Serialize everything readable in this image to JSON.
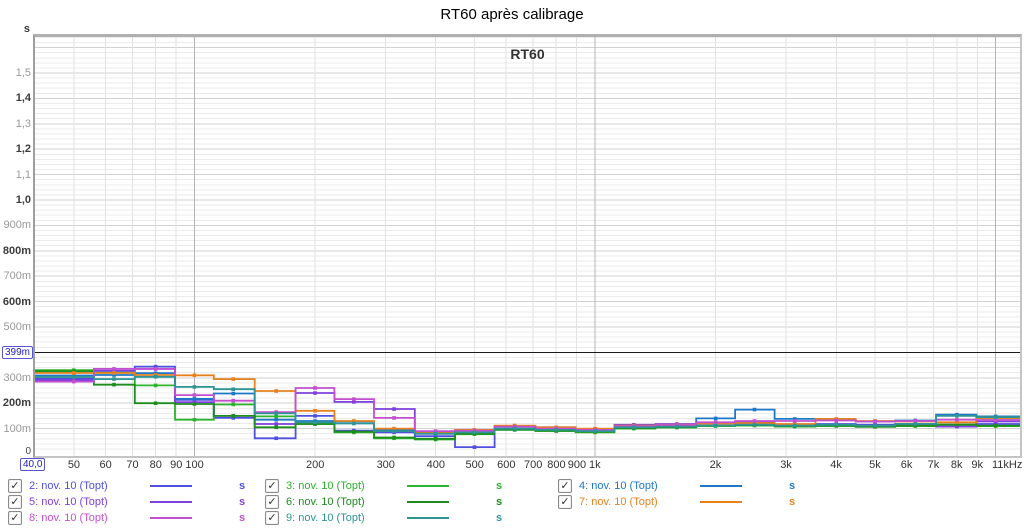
{
  "title": "RT60 après calibrage",
  "chart": {
    "inner_title": "RT60",
    "y_unit_label": "s",
    "y_origin_label": "0",
    "cursor": {
      "y_readout": "399m",
      "x_readout": "40,0",
      "y_value_s": 0.399,
      "x_value_hz": 40.0
    }
  },
  "chart_data": {
    "type": "line",
    "style": "stepped-third-octave-bands-with-markers",
    "title": "RT60",
    "x_axis": {
      "scale": "log",
      "min_hz": 40,
      "max_hz": 11500,
      "ticks": [
        {
          "label": "50",
          "hz": 50
        },
        {
          "label": "60",
          "hz": 60
        },
        {
          "label": "70",
          "hz": 70
        },
        {
          "label": "80",
          "hz": 80
        },
        {
          "label": "90",
          "hz": 90
        },
        {
          "label": "100",
          "hz": 100
        },
        {
          "label": "200",
          "hz": 200
        },
        {
          "label": "300",
          "hz": 300
        },
        {
          "label": "400",
          "hz": 400
        },
        {
          "label": "500",
          "hz": 500
        },
        {
          "label": "600",
          "hz": 600
        },
        {
          "label": "700",
          "hz": 700
        },
        {
          "label": "800",
          "hz": 800
        },
        {
          "label": "900",
          "hz": 900
        },
        {
          "label": "1k",
          "hz": 1000
        },
        {
          "label": "2k",
          "hz": 2000
        },
        {
          "label": "3k",
          "hz": 3000
        },
        {
          "label": "4k",
          "hz": 4000
        },
        {
          "label": "5k",
          "hz": 5000
        },
        {
          "label": "6k",
          "hz": 6000
        },
        {
          "label": "7k",
          "hz": 7000
        },
        {
          "label": "8k",
          "hz": 8000
        },
        {
          "label": "9k",
          "hz": 9000
        },
        {
          "label": "11kHz",
          "hz": 11000
        }
      ],
      "grid_minor_hz": [
        50,
        60,
        70,
        80,
        90,
        200,
        300,
        400,
        500,
        600,
        700,
        800,
        900,
        2000,
        3000,
        4000,
        5000,
        6000,
        7000,
        8000,
        9000
      ],
      "grid_major_hz": [
        100,
        1000,
        10000
      ]
    },
    "y_axis": {
      "unit": "s",
      "min": 0,
      "max": 1.64,
      "major_step": 0.1,
      "minor_step": 0.02,
      "ticks": [
        {
          "label": "100m",
          "value": 0.1,
          "emphasis": false
        },
        {
          "label": "200m",
          "value": 0.2,
          "emphasis": true
        },
        {
          "label": "300m",
          "value": 0.3,
          "emphasis": false
        },
        {
          "label": "500m",
          "value": 0.5,
          "emphasis": false
        },
        {
          "label": "600m",
          "value": 0.6,
          "emphasis": true
        },
        {
          "label": "700m",
          "value": 0.7,
          "emphasis": false
        },
        {
          "label": "800m",
          "value": 0.8,
          "emphasis": true
        },
        {
          "label": "900m",
          "value": 0.9,
          "emphasis": false
        },
        {
          "label": "1,0",
          "value": 1.0,
          "emphasis": true
        },
        {
          "label": "1,1",
          "value": 1.1,
          "emphasis": false
        },
        {
          "label": "1,2",
          "value": 1.2,
          "emphasis": true
        },
        {
          "label": "1,3",
          "value": 1.3,
          "emphasis": false
        },
        {
          "label": "1,4",
          "value": 1.4,
          "emphasis": true
        },
        {
          "label": "1,5",
          "value": 1.5,
          "emphasis": false
        }
      ]
    },
    "cursor": {
      "y_value_s": 0.399,
      "line_color": "#1a1a1a"
    },
    "band_centers_hz": [
      50,
      63,
      80,
      100,
      125,
      160,
      200,
      250,
      315,
      400,
      500,
      630,
      800,
      1000,
      1250,
      1600,
      2000,
      2500,
      3150,
      4000,
      5000,
      6300,
      8000,
      10000
    ],
    "series": [
      {
        "name": "2: nov. 10 (Topt)",
        "color": "#4f4fe0",
        "rt60_s": [
          0.297,
          0.327,
          0.344,
          0.213,
          0.142,
          0.062,
          0.15,
          0.092,
          0.085,
          0.07,
          0.027,
          0.095,
          0.1,
          0.097,
          0.112,
          0.112,
          0.12,
          0.125,
          0.112,
          0.118,
          0.115,
          0.118,
          0.11,
          0.118
        ]
      },
      {
        "name": "3: nov. 10 (Topt)",
        "color": "#2db32d",
        "rt60_s": [
          0.33,
          0.32,
          0.27,
          0.135,
          0.195,
          0.148,
          0.118,
          0.085,
          0.062,
          0.057,
          0.078,
          0.095,
          0.09,
          0.085,
          0.1,
          0.104,
          0.11,
          0.112,
          0.108,
          0.11,
          0.107,
          0.11,
          0.114,
          0.11
        ]
      },
      {
        "name": "4: nov. 10 (Topt)",
        "color": "#1e78c8",
        "rt60_s": [
          0.309,
          0.311,
          0.318,
          0.217,
          0.238,
          0.135,
          0.13,
          0.128,
          0.095,
          0.085,
          0.088,
          0.1,
          0.095,
          0.092,
          0.108,
          0.112,
          0.14,
          0.175,
          0.138,
          0.135,
          0.128,
          0.132,
          0.155,
          0.148
        ]
      },
      {
        "name": "5: nov. 10 (Topt)",
        "color": "#8040dd",
        "rt60_s": [
          0.291,
          0.328,
          0.335,
          0.204,
          0.15,
          0.118,
          0.24,
          0.205,
          0.177,
          0.08,
          0.09,
          0.11,
          0.105,
          0.098,
          0.115,
          0.118,
          0.122,
          0.118,
          0.112,
          0.115,
          0.112,
          0.115,
          0.108,
          0.128
        ]
      },
      {
        "name": "6: nov. 10 (Topt)",
        "color": "#1e8c1e",
        "rt60_s": [
          0.325,
          0.273,
          0.2,
          0.197,
          0.15,
          0.105,
          0.118,
          0.088,
          0.065,
          0.06,
          0.08,
          0.098,
          0.092,
          0.088,
          0.102,
          0.106,
          0.112,
          0.114,
          0.11,
          0.112,
          0.108,
          0.112,
          0.116,
          0.112
        ]
      },
      {
        "name": "7: nov. 10 (Topt)",
        "color": "#e8821e",
        "rt60_s": [
          0.319,
          0.319,
          0.311,
          0.31,
          0.295,
          0.248,
          0.17,
          0.13,
          0.1,
          0.085,
          0.095,
          0.112,
          0.105,
          0.1,
          0.112,
          0.115,
          0.12,
          0.122,
          0.118,
          0.138,
          0.13,
          0.128,
          0.125,
          0.14
        ]
      },
      {
        "name": "8: nov. 10 (Topt)",
        "color": "#c44fd0",
        "rt60_s": [
          0.285,
          0.335,
          0.335,
          0.232,
          0.21,
          0.165,
          0.26,
          0.216,
          0.142,
          0.09,
          0.092,
          0.108,
          0.1,
          0.095,
          0.11,
          0.114,
          0.125,
          0.13,
          0.13,
          0.132,
          0.128,
          0.13,
          0.135,
          0.134
        ]
      },
      {
        "name": "9: nov. 10 (Topt)",
        "color": "#2e9494",
        "rt60_s": [
          0.303,
          0.295,
          0.304,
          0.264,
          0.255,
          0.16,
          0.125,
          0.12,
          0.09,
          0.08,
          0.085,
          0.1,
          0.095,
          0.09,
          0.105,
          0.108,
          0.112,
          0.115,
          0.112,
          0.115,
          0.112,
          0.118,
          0.15,
          0.145
        ]
      }
    ]
  },
  "legend": {
    "unit_suffix": "s",
    "checkbox_glyph": "✓",
    "items": [
      {
        "label": "2: nov. 10 (Topt)",
        "color": "#4f4fe0",
        "checked": true,
        "col": 0,
        "row": 0
      },
      {
        "label": "3: nov. 10 (Topt)",
        "color": "#2db32d",
        "checked": true,
        "col": 1,
        "row": 0
      },
      {
        "label": "4: nov. 10 (Topt)",
        "color": "#1e78c8",
        "checked": true,
        "col": 2,
        "row": 0
      },
      {
        "label": "5: nov. 10 (Topt)",
        "color": "#8040dd",
        "checked": true,
        "col": 0,
        "row": 1
      },
      {
        "label": "6: nov. 10 (Topt)",
        "color": "#1e8c1e",
        "checked": true,
        "col": 1,
        "row": 1
      },
      {
        "label": "7: nov. 10 (Topt)",
        "color": "#e8821e",
        "checked": true,
        "col": 2,
        "row": 1
      },
      {
        "label": "8: nov. 10 (Topt)",
        "color": "#c44fd0",
        "checked": true,
        "col": 0,
        "row": 2
      },
      {
        "label": "9: nov. 10 (Topt)",
        "color": "#2e9494",
        "checked": true,
        "col": 1,
        "row": 2
      }
    ]
  }
}
